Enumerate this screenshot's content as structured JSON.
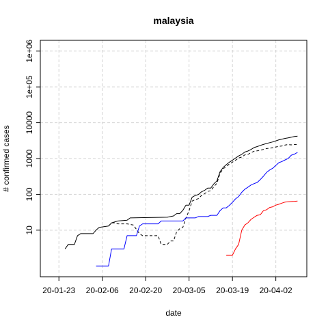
{
  "chart_data": {
    "type": "line",
    "title": "malaysia",
    "xlabel": "date",
    "ylabel": "# confirmed cases",
    "x_scale": "date",
    "y_scale": "log10",
    "ylim": [
      0.5,
      2000000
    ],
    "xlim": [
      "2020-01-17",
      "2020-04-12"
    ],
    "grid": true,
    "x_ticks": [
      "2020-01-23",
      "2020-02-06",
      "2020-02-20",
      "2020-03-05",
      "2020-03-19",
      "2020-04-02"
    ],
    "x_tick_labels": [
      "20-01-23",
      "20-02-06",
      "20-02-20",
      "20-03-05",
      "20-03-19",
      "20-04-02"
    ],
    "y_ticks": [
      10,
      100,
      1000,
      10000,
      100000,
      1000000
    ],
    "y_tick_labels": [
      "10",
      "100",
      "1000",
      "10000",
      "1e+05",
      "1e+06"
    ],
    "series": [
      {
        "color": "#000000",
        "dash": "solid",
        "points": [
          [
            "2020-01-25",
            3
          ],
          [
            "2020-01-26",
            4
          ],
          [
            "2020-01-28",
            4
          ],
          [
            "2020-01-29",
            7
          ],
          [
            "2020-01-30",
            8
          ],
          [
            "2020-02-03",
            8
          ],
          [
            "2020-02-04",
            10
          ],
          [
            "2020-02-05",
            12
          ],
          [
            "2020-02-08",
            13
          ],
          [
            "2020-02-09",
            16
          ],
          [
            "2020-02-11",
            18
          ],
          [
            "2020-02-14",
            19
          ],
          [
            "2020-02-15",
            22
          ],
          [
            "2020-02-27",
            23
          ],
          [
            "2020-02-29",
            25
          ],
          [
            "2020-03-01",
            29
          ],
          [
            "2020-03-02",
            29
          ],
          [
            "2020-03-03",
            36
          ],
          [
            "2020-03-04",
            50
          ],
          [
            "2020-03-05",
            50
          ],
          [
            "2020-03-06",
            83
          ],
          [
            "2020-03-07",
            93
          ],
          [
            "2020-03-08",
            99
          ],
          [
            "2020-03-09",
            117
          ],
          [
            "2020-03-10",
            129
          ],
          [
            "2020-03-11",
            149
          ],
          [
            "2020-03-12",
            149
          ],
          [
            "2020-03-13",
            197
          ],
          [
            "2020-03-14",
            238
          ],
          [
            "2020-03-15",
            428
          ],
          [
            "2020-03-16",
            566
          ],
          [
            "2020-03-17",
            673
          ],
          [
            "2020-03-18",
            790
          ],
          [
            "2020-03-19",
            900
          ],
          [
            "2020-03-20",
            1030
          ],
          [
            "2020-03-21",
            1183
          ],
          [
            "2020-03-22",
            1306
          ],
          [
            "2020-03-23",
            1518
          ],
          [
            "2020-03-24",
            1624
          ],
          [
            "2020-03-25",
            1796
          ],
          [
            "2020-03-26",
            2031
          ],
          [
            "2020-03-27",
            2161
          ],
          [
            "2020-03-28",
            2320
          ],
          [
            "2020-03-29",
            2470
          ],
          [
            "2020-03-30",
            2626
          ],
          [
            "2020-03-31",
            2766
          ],
          [
            "2020-04-01",
            2908
          ],
          [
            "2020-04-02",
            3116
          ],
          [
            "2020-04-03",
            3333
          ],
          [
            "2020-04-04",
            3483
          ],
          [
            "2020-04-05",
            3662
          ],
          [
            "2020-04-06",
            3793
          ],
          [
            "2020-04-07",
            3963
          ],
          [
            "2020-04-08",
            4119
          ],
          [
            "2020-04-09",
            4228
          ]
        ]
      },
      {
        "color": "#000000",
        "dash": "dashed",
        "points": [
          [
            "2020-02-08",
            13
          ],
          [
            "2020-02-09",
            16
          ],
          [
            "2020-02-10",
            16
          ],
          [
            "2020-02-11",
            15
          ],
          [
            "2020-02-14",
            15
          ],
          [
            "2020-02-16",
            14
          ],
          [
            "2020-02-18",
            8
          ],
          [
            "2020-02-19",
            7
          ],
          [
            "2020-02-24",
            7
          ],
          [
            "2020-02-25",
            4
          ],
          [
            "2020-02-27",
            4
          ],
          [
            "2020-02-28",
            5
          ],
          [
            "2020-02-29",
            5
          ],
          [
            "2020-03-01",
            9
          ],
          [
            "2020-03-02",
            11
          ],
          [
            "2020-03-03",
            12
          ],
          [
            "2020-03-04",
            22
          ],
          [
            "2020-03-05",
            35
          ],
          [
            "2020-03-06",
            65
          ],
          [
            "2020-03-07",
            71
          ],
          [
            "2020-03-08",
            76
          ],
          [
            "2020-03-09",
            93
          ],
          [
            "2020-03-10",
            104
          ],
          [
            "2020-03-11",
            121
          ],
          [
            "2020-03-12",
            126
          ],
          [
            "2020-03-13",
            164
          ],
          [
            "2020-03-14",
            205
          ],
          [
            "2020-03-15",
            389
          ],
          [
            "2020-03-16",
            514
          ],
          [
            "2020-03-17",
            598
          ],
          [
            "2020-03-18",
            703
          ],
          [
            "2020-03-19",
            793
          ],
          [
            "2020-03-20",
            896
          ],
          [
            "2020-03-21",
            1029
          ],
          [
            "2020-03-22",
            1102
          ],
          [
            "2020-03-23",
            1266
          ],
          [
            "2020-03-24",
            1300
          ],
          [
            "2020-03-25",
            1459
          ],
          [
            "2020-03-26",
            1599
          ],
          [
            "2020-03-27",
            1636
          ],
          [
            "2020-03-28",
            1708
          ],
          [
            "2020-03-29",
            1796
          ],
          [
            "2020-03-30",
            1896
          ],
          [
            "2020-03-31",
            1934
          ],
          [
            "2020-04-01",
            2012
          ],
          [
            "2020-04-02",
            2103
          ],
          [
            "2020-04-03",
            2187
          ],
          [
            "2020-04-04",
            2240
          ],
          [
            "2020-04-05",
            2384
          ],
          [
            "2020-04-06",
            2453
          ],
          [
            "2020-04-07",
            2413
          ],
          [
            "2020-04-08",
            2463
          ],
          [
            "2020-04-09",
            2468
          ]
        ]
      },
      {
        "color": "#0000ff",
        "dash": "solid",
        "points": [
          [
            "2020-02-04",
            1
          ],
          [
            "2020-02-08",
            1
          ],
          [
            "2020-02-09",
            3
          ],
          [
            "2020-02-13",
            3
          ],
          [
            "2020-02-14",
            7
          ],
          [
            "2020-02-17",
            7
          ],
          [
            "2020-02-18",
            13
          ],
          [
            "2020-02-19",
            15
          ],
          [
            "2020-02-24",
            15
          ],
          [
            "2020-02-25",
            18
          ],
          [
            "2020-03-03",
            18
          ],
          [
            "2020-03-04",
            22
          ],
          [
            "2020-03-07",
            22
          ],
          [
            "2020-03-08",
            24
          ],
          [
            "2020-03-11",
            24
          ],
          [
            "2020-03-12",
            26
          ],
          [
            "2020-03-14",
            26
          ],
          [
            "2020-03-15",
            35
          ],
          [
            "2020-03-16",
            42
          ],
          [
            "2020-03-17",
            42
          ],
          [
            "2020-03-18",
            49
          ],
          [
            "2020-03-19",
            60
          ],
          [
            "2020-03-20",
            75
          ],
          [
            "2020-03-21",
            87
          ],
          [
            "2020-03-22",
            114
          ],
          [
            "2020-03-23",
            139
          ],
          [
            "2020-03-24",
            159
          ],
          [
            "2020-03-25",
            183
          ],
          [
            "2020-03-26",
            199
          ],
          [
            "2020-03-27",
            215
          ],
          [
            "2020-03-28",
            259
          ],
          [
            "2020-03-29",
            320
          ],
          [
            "2020-03-30",
            408
          ],
          [
            "2020-03-31",
            479
          ],
          [
            "2020-04-01",
            537
          ],
          [
            "2020-04-02",
            645
          ],
          [
            "2020-04-03",
            767
          ],
          [
            "2020-04-04",
            827
          ],
          [
            "2020-04-05",
            915
          ],
          [
            "2020-04-06",
            1005
          ],
          [
            "2020-04-07",
            1241
          ],
          [
            "2020-04-08",
            1322
          ],
          [
            "2020-04-09",
            1487
          ]
        ]
      },
      {
        "color": "#ff0000",
        "dash": "solid",
        "points": [
          [
            "2020-03-17",
            2
          ],
          [
            "2020-03-19",
            2
          ],
          [
            "2020-03-20",
            3
          ],
          [
            "2020-03-21",
            4
          ],
          [
            "2020-03-22",
            10
          ],
          [
            "2020-03-23",
            14
          ],
          [
            "2020-03-24",
            16
          ],
          [
            "2020-03-25",
            20
          ],
          [
            "2020-03-26",
            23
          ],
          [
            "2020-03-27",
            26
          ],
          [
            "2020-03-28",
            27
          ],
          [
            "2020-03-29",
            35
          ],
          [
            "2020-03-30",
            37
          ],
          [
            "2020-03-31",
            43
          ],
          [
            "2020-04-01",
            45
          ],
          [
            "2020-04-02",
            50
          ],
          [
            "2020-04-03",
            53
          ],
          [
            "2020-04-04",
            57
          ],
          [
            "2020-04-05",
            61
          ],
          [
            "2020-04-06",
            62
          ],
          [
            "2020-04-07",
            63
          ],
          [
            "2020-04-08",
            64
          ],
          [
            "2020-04-09",
            65
          ]
        ]
      }
    ]
  }
}
